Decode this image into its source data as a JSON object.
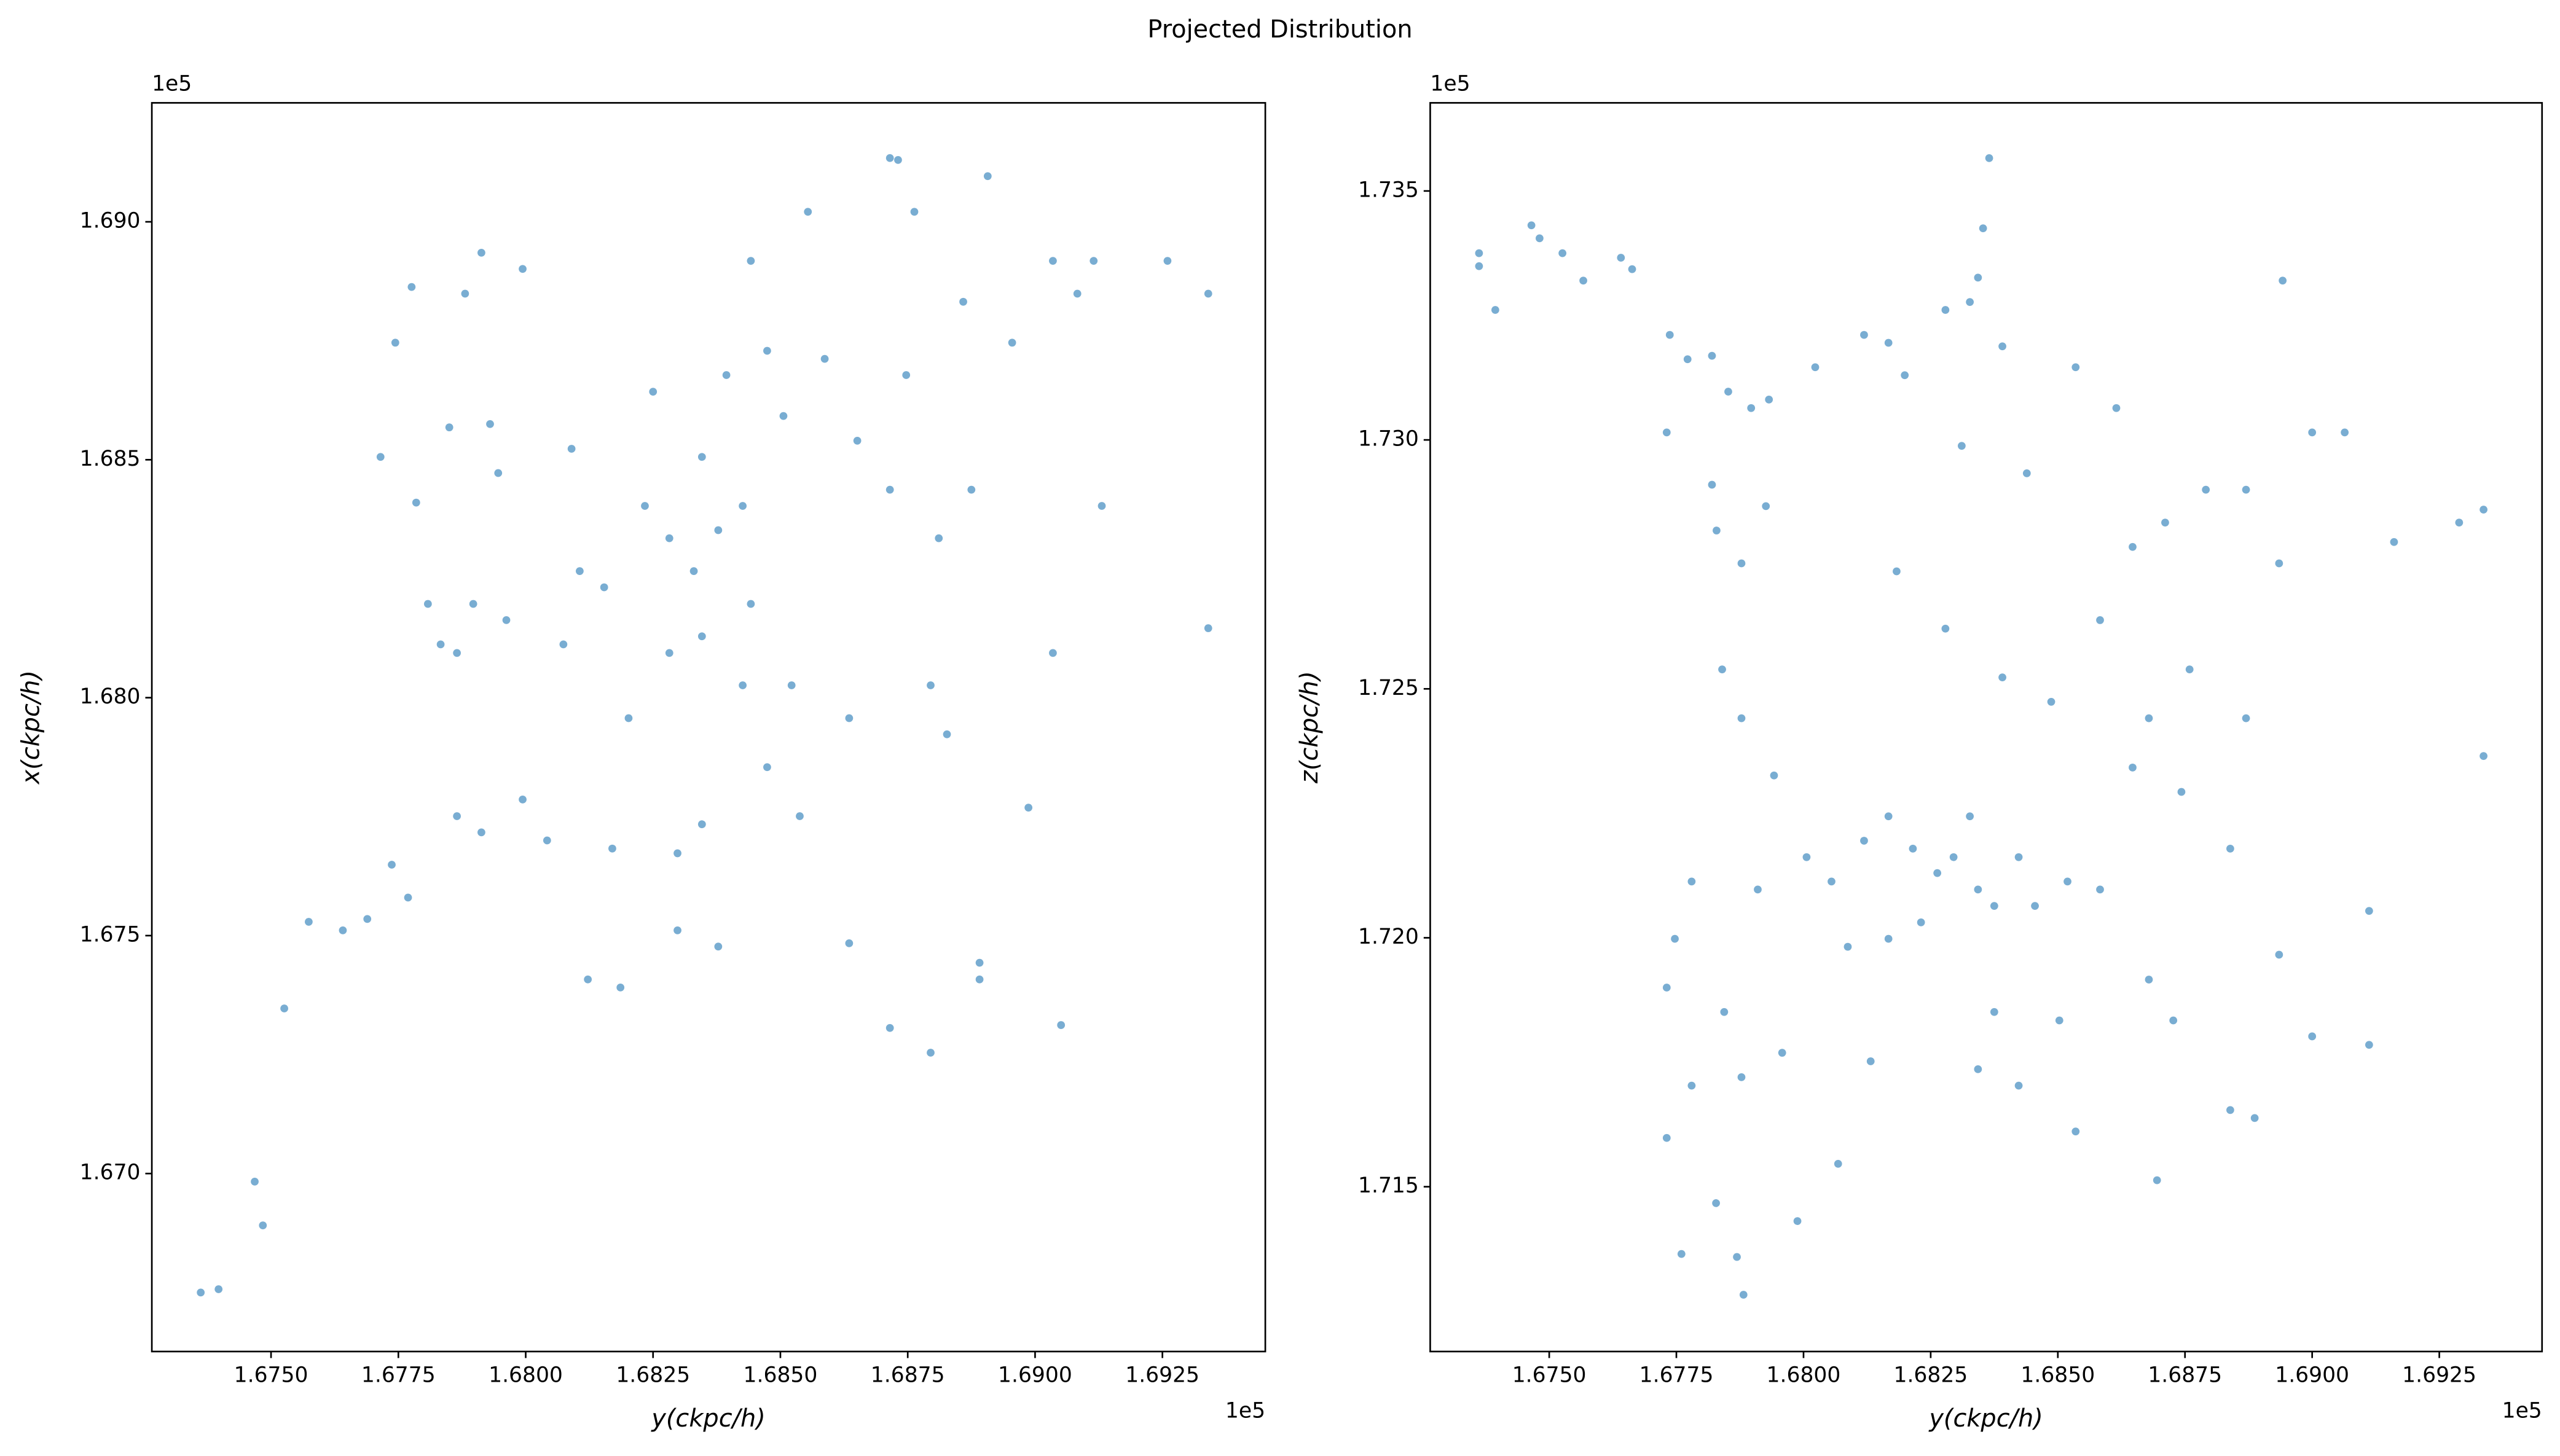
{
  "title": "Projected Distribution",
  "chart_data": [
    {
      "type": "scatter",
      "x_label": "y(ckpc/h)",
      "y_label": "x(ckpc/h)",
      "x_offset": "1e5",
      "y_offset": "1e5",
      "color": "#1f77b4",
      "grid": false,
      "xlim": [
        1.67266,
        1.69452
      ],
      "ylim": [
        1.66626,
        1.6925
      ],
      "xticks": [
        {
          "value": 1.675,
          "label": "1.6750"
        },
        1.6775,
        {
          "value": 1.68,
          "label": "1.6800"
        },
        1.6825,
        {
          "value": 1.685,
          "label": "1.6850"
        },
        1.6875,
        {
          "value": 1.69,
          "label": "1.6900"
        },
        1.6925
      ],
      "yticks": [
        {
          "value": 1.67,
          "label": "1.670"
        },
        1.675,
        {
          "value": 1.68,
          "label": "1.680"
        },
        1.685,
        {
          "value": 1.69,
          "label": "1.690"
        }
      ],
      "x": [
        1.67362,
        1.67397,
        1.67468,
        1.67484,
        1.67526,
        1.67574,
        1.67641,
        1.67689,
        1.67737,
        1.67769,
        1.67715,
        1.67744,
        1.67776,
        1.67785,
        1.67808,
        1.6785,
        1.67865,
        1.67881,
        1.67913,
        1.6793,
        1.67946,
        1.67897,
        1.67962,
        1.67865,
        1.67913,
        1.67994,
        1.68042,
        1.68074,
        1.68106,
        1.68154,
        1.6817,
        1.68186,
        1.68202,
        1.68234,
        1.6825,
        1.68282,
        1.6833,
        1.68346,
        1.68378,
        1.68426,
        1.68394,
        1.68442,
        1.68474,
        1.68506,
        1.68554,
        1.68587,
        1.68346,
        1.68378,
        1.68298,
        1.68298,
        1.68426,
        1.68474,
        1.68522,
        1.68538,
        1.68635,
        1.68651,
        1.68715,
        1.68747,
        1.68763,
        1.68795,
        1.68827,
        1.68811,
        1.68875,
        1.68859,
        1.68907,
        1.68955,
        1.68987,
        1.69035,
        1.69035,
        1.69083,
        1.69131,
        1.69115,
        1.6926,
        1.6934,
        1.6934,
        1.68891,
        1.68795,
        1.68715,
        1.68891,
        1.69051,
        1.68715,
        1.68731,
        1.68635,
        1.68122,
        1.67833,
        1.6809,
        1.67994,
        1.68346,
        1.68282,
        1.68442
      ],
      "values": [
        1.6675,
        1.66757,
        1.66983,
        1.66891,
        1.67347,
        1.67529,
        1.67511,
        1.67535,
        1.67649,
        1.6758,
        1.68506,
        1.68746,
        1.68863,
        1.6841,
        1.68197,
        1.68568,
        1.68094,
        1.68849,
        1.68935,
        1.68575,
        1.68472,
        1.68197,
        1.68163,
        1.67751,
        1.67717,
        1.67786,
        1.677,
        1.68112,
        1.68266,
        1.68232,
        1.67683,
        1.67391,
        1.67957,
        1.68403,
        1.68643,
        1.68335,
        1.68266,
        1.68129,
        1.68352,
        1.68403,
        1.68678,
        1.68918,
        1.68729,
        1.68592,
        1.69021,
        1.68712,
        1.67734,
        1.67477,
        1.67673,
        1.67511,
        1.68026,
        1.67854,
        1.68026,
        1.67751,
        1.67957,
        1.6854,
        1.68437,
        1.68678,
        1.69021,
        1.68026,
        1.67923,
        1.68335,
        1.68437,
        1.68832,
        1.69096,
        1.68746,
        1.67769,
        1.68094,
        1.68918,
        1.68849,
        1.68403,
        1.68918,
        1.68918,
        1.68849,
        1.68146,
        1.67408,
        1.67254,
        1.67306,
        1.67443,
        1.67312,
        1.69134,
        1.6913,
        1.67484,
        1.67408,
        1.68112,
        1.68523,
        1.68901,
        1.68506,
        1.68094,
        1.68197
      ]
    },
    {
      "type": "scatter",
      "x_label": "y(ckpc/h)",
      "y_label": "z(ckpc/h)",
      "x_offset": "1e5",
      "y_offset": "1e5",
      "color": "#1f77b4",
      "grid": false,
      "xlim": [
        1.67266,
        1.69452
      ],
      "ylim": [
        1.71169,
        1.73677
      ],
      "xticks": [
        {
          "value": 1.675,
          "label": "1.6750"
        },
        1.6775,
        {
          "value": 1.68,
          "label": "1.6800"
        },
        1.6825,
        {
          "value": 1.685,
          "label": "1.6850"
        },
        1.6875,
        {
          "value": 1.69,
          "label": "1.6900"
        },
        1.6925
      ],
      "yticks": [
        1.715,
        {
          "value": 1.72,
          "label": "1.720"
        },
        1.725,
        {
          "value": 1.73,
          "label": "1.730"
        },
        1.735
      ],
      "x": [
        1.67362,
        1.67362,
        1.67394,
        1.67465,
        1.67481,
        1.67526,
        1.67567,
        1.67641,
        1.67663,
        1.67737,
        1.67772,
        1.6782,
        1.67852,
        1.67731,
        1.6782,
        1.67897,
        1.67932,
        1.67829,
        1.67878,
        1.67926,
        1.68023,
        1.68119,
        1.68167,
        1.68199,
        1.68279,
        1.68327,
        1.68343,
        1.68365,
        1.68353,
        1.68311,
        1.68391,
        1.68535,
        1.68615,
        1.68942,
        1.69,
        1.69064,
        1.69161,
        1.69289,
        1.69337,
        1.69337,
        1.6784,
        1.67878,
        1.67942,
        1.68006,
        1.68055,
        1.68119,
        1.68167,
        1.68215,
        1.68263,
        1.68295,
        1.68327,
        1.68343,
        1.68375,
        1.68423,
        1.68455,
        1.68519,
        1.68583,
        1.68231,
        1.68167,
        1.68087,
        1.6791,
        1.6778,
        1.67747,
        1.67731,
        1.67844,
        1.67878,
        1.67958,
        1.6778,
        1.67731,
        1.67828,
        1.67869,
        1.67882,
        1.6776,
        1.67988,
        1.68068,
        1.68132,
        1.68343,
        1.68375,
        1.68423,
        1.68503,
        1.68535,
        1.68679,
        1.68727,
        1.68695,
        1.68839,
        1.68887,
        1.68935,
        1.69,
        1.69112,
        1.69112,
        1.68743,
        1.68839,
        1.68759,
        1.6887,
        1.68791,
        1.6887,
        1.68711,
        1.68647,
        1.68583,
        1.68487,
        1.68935,
        1.68439,
        1.68183,
        1.68279,
        1.68391,
        1.68647,
        1.68679
      ],
      "values": [
        1.73375,
        1.73349,
        1.73261,
        1.73431,
        1.73405,
        1.73375,
        1.7332,
        1.73366,
        1.73343,
        1.73211,
        1.73162,
        1.73169,
        1.73097,
        1.73015,
        1.7291,
        1.73064,
        1.73081,
        1.72818,
        1.72752,
        1.72867,
        1.73146,
        1.73211,
        1.73195,
        1.7313,
        1.73261,
        1.73277,
        1.73326,
        1.73566,
        1.73425,
        1.72988,
        1.73188,
        1.73146,
        1.73064,
        1.7332,
        1.73015,
        1.73015,
        1.72795,
        1.72834,
        1.72365,
        1.7286,
        1.72539,
        1.72441,
        1.72326,
        1.72162,
        1.72113,
        1.72195,
        1.72244,
        1.72179,
        1.7213,
        1.72162,
        1.72244,
        1.72097,
        1.72064,
        1.72162,
        1.72064,
        1.72113,
        1.72097,
        1.72031,
        1.71998,
        1.71982,
        1.72097,
        1.72113,
        1.71998,
        1.719,
        1.71851,
        1.7172,
        1.71769,
        1.71703,
        1.71598,
        1.71467,
        1.71359,
        1.71283,
        1.71365,
        1.71431,
        1.71546,
        1.71752,
        1.71736,
        1.71851,
        1.71703,
        1.71834,
        1.71611,
        1.71916,
        1.71834,
        1.71513,
        1.71654,
        1.71638,
        1.71966,
        1.71802,
        1.71785,
        1.72054,
        1.72293,
        1.72179,
        1.72539,
        1.72441,
        1.729,
        1.729,
        1.72834,
        1.72785,
        1.72638,
        1.72474,
        1.72752,
        1.72933,
        1.72736,
        1.72621,
        1.72523,
        1.72342,
        1.72441
      ]
    }
  ]
}
